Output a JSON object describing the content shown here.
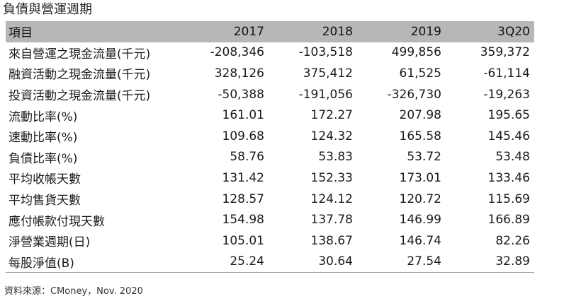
{
  "title": "負債與營運週期",
  "table": {
    "headers": [
      "項目",
      "2017",
      "2018",
      "2019",
      "3Q20"
    ],
    "rows": [
      [
        "來自營運之現金流量(千元)",
        "-208,346",
        "-103,518",
        "499,856",
        "359,372"
      ],
      [
        "融資活動之現金流量(千元)",
        "328,126",
        "375,412",
        "61,525",
        "-61,114"
      ],
      [
        "投資活動之現金流量(千元)",
        "-50,388",
        "-191,056",
        "-326,730",
        "-19,263"
      ],
      [
        "流動比率(%)",
        "161.01",
        "172.27",
        "207.98",
        "195.65"
      ],
      [
        "速動比率(%)",
        "109.68",
        "124.32",
        "165.58",
        "145.46"
      ],
      [
        "負債比率(%)",
        "58.76",
        "53.83",
        "53.72",
        "53.48"
      ],
      [
        "平均收帳天數",
        "131.42",
        "152.33",
        "173.01",
        "133.46"
      ],
      [
        "平均售貨天數",
        "128.57",
        "124.12",
        "120.72",
        "115.69"
      ],
      [
        "應付帳款付現天數",
        "154.98",
        "137.78",
        "146.99",
        "166.89"
      ],
      [
        "淨營業週期(日)",
        "105.01",
        "138.67",
        "146.74",
        "82.26"
      ],
      [
        "每股淨值(B)",
        "25.24",
        "30.64",
        "27.54",
        "32.89"
      ]
    ]
  },
  "source": "資料來源：CMoney，Nov. 2020",
  "colors": {
    "header_bg": "#b7b7b7",
    "rule": "#9a9a9a"
  }
}
